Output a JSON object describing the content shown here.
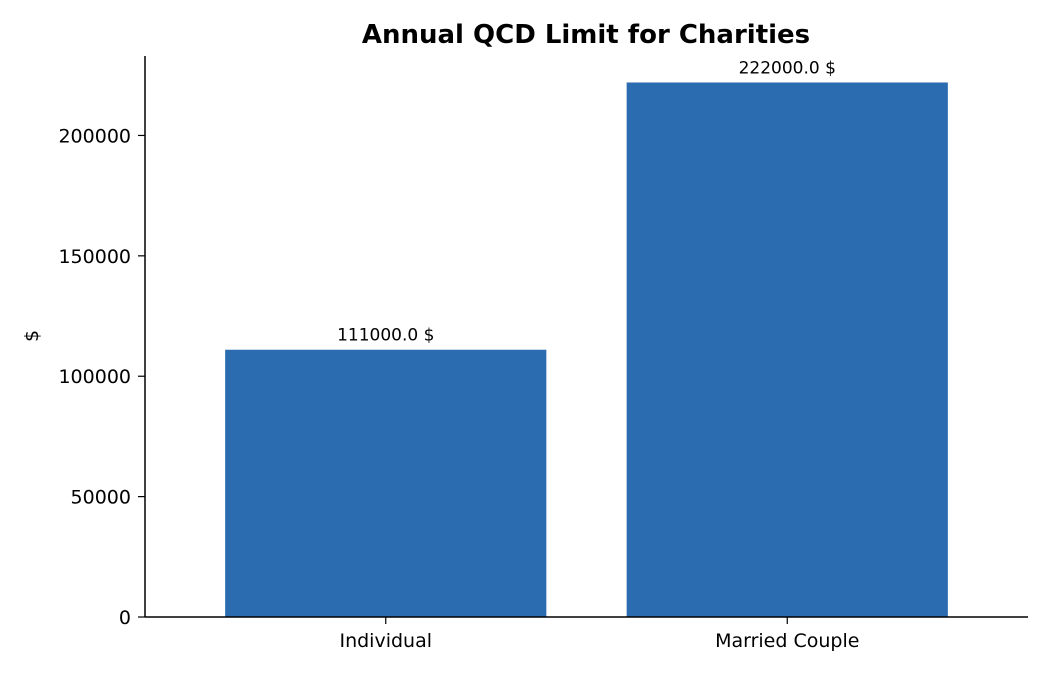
{
  "chart_data": {
    "type": "bar",
    "title": "Annual QCD Limit for Charities",
    "xlabel": "",
    "ylabel": "$",
    "categories": [
      "Individual",
      "Married Couple"
    ],
    "values": [
      111000,
      222000
    ],
    "data_labels": [
      "111000.0 $",
      "222000.0 $"
    ],
    "ylim": [
      0,
      233000
    ],
    "yticks": [
      0,
      50000,
      100000,
      150000,
      200000
    ],
    "ytick_labels": [
      "0",
      "50000",
      "100000",
      "150000",
      "200000"
    ],
    "bar_color": "#2b6cb0",
    "grid": false,
    "legend": "none"
  }
}
